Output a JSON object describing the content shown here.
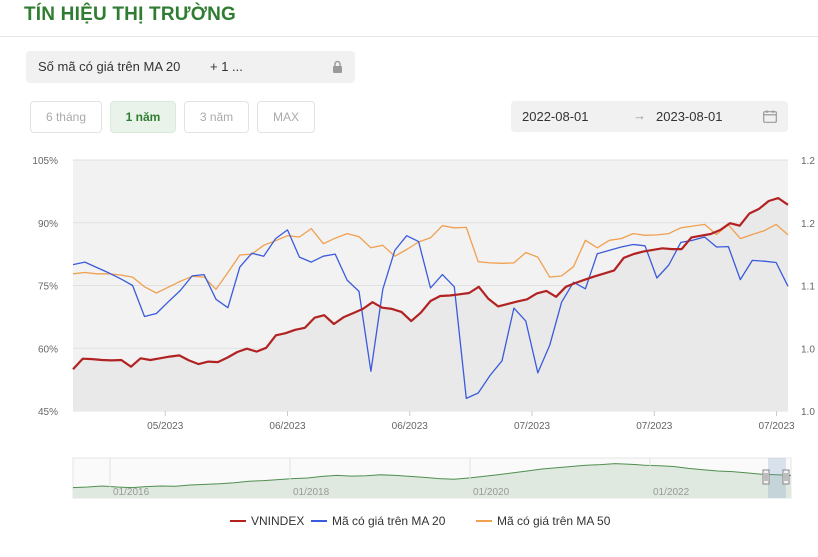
{
  "header": {
    "title": "TÍN HIỆU THỊ TRƯỜNG"
  },
  "filter": {
    "selected": "Số mã có giá trên MA 20",
    "more": "+ 1 ...",
    "lock_icon": "lock-icon"
  },
  "periods": [
    {
      "label": "6 tháng",
      "active": false
    },
    {
      "label": "1 năm",
      "active": true
    },
    {
      "label": "3 năm",
      "active": false
    },
    {
      "label": "MAX",
      "active": false
    }
  ],
  "date_range": {
    "from": "2022-08-01",
    "arrow": "→",
    "to": "2023-08-01",
    "calendar_icon": "calendar-icon"
  },
  "chart_data": {
    "type": "line",
    "y_left": {
      "ticks": [
        "105%",
        "90%",
        "75%",
        "60%",
        "45%"
      ],
      "values": [
        105,
        90,
        75,
        60,
        45
      ]
    },
    "y_right": {
      "ticks": [
        "1.2",
        "1.2",
        "1.1",
        "1.0",
        "1.0"
      ]
    },
    "x_ticks": [
      "05/2023",
      "06/2023",
      "06/2023",
      "07/2023",
      "07/2023",
      "07/2023"
    ],
    "series": [
      {
        "name": "VNINDEX",
        "color": "#b22222",
        "axis": "right",
        "values": [
          55.0,
          57.5,
          57.4,
          57.2,
          57.1,
          57.2,
          55.6,
          57.6,
          57.2,
          57.6,
          58.0,
          58.3,
          57.1,
          56.2,
          56.8,
          56.7,
          57.8,
          59.1,
          59.9,
          59.2,
          60.1,
          63.1,
          63.6,
          64.4,
          64.9,
          67.3,
          67.9,
          65.8,
          67.4,
          68.4,
          69.4,
          71.0,
          69.7,
          69.4,
          68.7,
          66.5,
          68.5,
          71.3,
          72.5,
          72.6,
          72.9,
          73.2,
          74.7,
          71.8,
          70.0,
          70.6,
          71.2,
          71.7,
          73.1,
          73.7,
          72.3,
          74.7,
          75.6,
          76.4,
          77.2,
          77.9,
          78.6,
          81.6,
          82.5,
          83.1,
          83.5,
          83.9,
          83.7,
          83.7,
          86.5,
          86.9,
          87.3,
          88.3,
          89.9,
          89.3,
          92.2,
          93.3,
          95.2,
          95.9,
          94.3
        ]
      },
      {
        "name": "Mã có giá trên MA 20",
        "color": "#3b5bdb",
        "axis": "left",
        "values": [
          80.0,
          80.6,
          79.3,
          78.0,
          76.6,
          75.0,
          67.6,
          68.3,
          71.1,
          73.8,
          77.3,
          77.6,
          71.7,
          69.7,
          79.4,
          82.7,
          82.0,
          86.2,
          88.3,
          81.8,
          80.6,
          82.0,
          82.5,
          76.3,
          73.6,
          54.5,
          74.1,
          83.4,
          86.9,
          85.5,
          74.4,
          77.6,
          74.7,
          48.0,
          49.3,
          53.5,
          57.0,
          69.6,
          66.5,
          54.1,
          60.7,
          71.0,
          75.8,
          74.2,
          82.6,
          83.4,
          84.2,
          84.8,
          84.5,
          76.8,
          79.9,
          85.3,
          85.8,
          86.6,
          84.2,
          84.3,
          76.4,
          81.0,
          80.8,
          80.5,
          74.8
        ]
      },
      {
        "name": "Mã có giá trên MA 50",
        "color": "#f0a050",
        "axis": "left",
        "values": [
          77.8,
          78.1,
          77.8,
          77.8,
          77.5,
          77.0,
          74.7,
          73.2,
          74.6,
          76.0,
          77.2,
          77.0,
          74.1,
          78.1,
          82.3,
          82.5,
          84.6,
          85.7,
          86.9,
          86.6,
          88.6,
          85.0,
          86.3,
          87.4,
          86.7,
          84.0,
          84.6,
          82.0,
          83.6,
          85.4,
          86.4,
          89.3,
          88.8,
          88.9,
          80.7,
          80.4,
          80.3,
          80.4,
          82.9,
          81.8,
          77.0,
          77.3,
          79.5,
          85.8,
          84.0,
          85.8,
          86.2,
          87.4,
          87.0,
          87.1,
          87.4,
          88.8,
          89.2,
          89.6,
          87.2,
          89.5,
          86.2,
          87.2,
          88.1,
          89.6,
          87.1
        ]
      }
    ],
    "navigator": {
      "ticks": [
        "01/2016",
        "01/2018",
        "01/2020",
        "01/2022"
      ]
    }
  }
}
